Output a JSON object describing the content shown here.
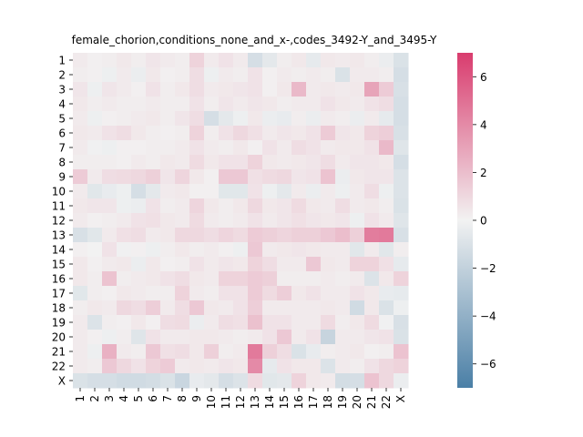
{
  "chart_data": {
    "type": "heatmap",
    "title": "female_chorion,conditions_none_and_x-,codes_3492-Y_and_3495-Y",
    "xlabel": "",
    "ylabel": "",
    "x_categories": [
      "1",
      "2",
      "3",
      "4",
      "5",
      "6",
      "7",
      "8",
      "9",
      "10",
      "11",
      "12",
      "13",
      "14",
      "15",
      "16",
      "17",
      "18",
      "19",
      "20",
      "21",
      "22",
      "X"
    ],
    "y_categories": [
      "1",
      "2",
      "3",
      "4",
      "5",
      "6",
      "7",
      "8",
      "9",
      "10",
      "11",
      "12",
      "13",
      "14",
      "15",
      "16",
      "17",
      "18",
      "19",
      "20",
      "21",
      "22",
      "X"
    ],
    "colorbar": {
      "vmin": -7,
      "vmax": 7,
      "ticks": [
        -6,
        -4,
        -2,
        0,
        2,
        4,
        6
      ],
      "tick_labels": [
        "−6",
        "−4",
        "−2",
        "0",
        "2",
        "4",
        "6"
      ],
      "low_color": "#4a7fa6",
      "mid_color": "#f2f2f2",
      "high_color": "#d93c6e"
    },
    "values": [
      [
        0.3,
        0.1,
        0.2,
        0.4,
        0.2,
        0.5,
        0.3,
        0.2,
        1.2,
        0.3,
        0.6,
        0.3,
        -1.2,
        -0.6,
        0.2,
        0.4,
        -0.5,
        0.4,
        0.3,
        0.4,
        0.2,
        -0.3,
        -1.0
      ],
      [
        0.2,
        0.1,
        -0.2,
        0.3,
        -0.3,
        0.4,
        0.1,
        0.2,
        0.8,
        -0.2,
        0.3,
        0.2,
        0.6,
        0.1,
        0.3,
        0.2,
        0.3,
        0.2,
        -1.0,
        0.3,
        0.3,
        0.2,
        -1.2
      ],
      [
        0.5,
        -0.2,
        0.5,
        0.3,
        0.1,
        0.6,
        0.2,
        0.4,
        0.8,
        0.3,
        0.4,
        0.5,
        0.6,
        0.1,
        0.4,
        2.2,
        0.3,
        0.4,
        0.3,
        0.4,
        3.0,
        1.5,
        -1.1
      ],
      [
        0.4,
        0.2,
        0.3,
        0.2,
        0.2,
        0.3,
        0.2,
        0.2,
        0.6,
        0.2,
        0.5,
        0.3,
        0.5,
        0.4,
        0.2,
        0.3,
        0.3,
        0.6,
        0.4,
        0.3,
        0.6,
        0.8,
        -1.2
      ],
      [
        0.3,
        -0.2,
        0.1,
        0.2,
        0.3,
        0.4,
        0.2,
        0.5,
        0.8,
        -1.2,
        -0.6,
        -0.2,
        0.4,
        -0.3,
        -0.4,
        0.2,
        -0.3,
        0.3,
        0.2,
        -0.3,
        0.3,
        -0.5,
        -1.2
      ],
      [
        0.4,
        0.3,
        0.6,
        0.8,
        0.4,
        0.2,
        0.1,
        0.2,
        1.2,
        0.2,
        0.6,
        1.0,
        0.7,
        0.3,
        0.5,
        0.4,
        0.6,
        1.5,
        0.5,
        0.4,
        1.2,
        1.4,
        -1.1
      ],
      [
        0.3,
        -0.1,
        -0.2,
        0.1,
        0.1,
        0.2,
        0.2,
        0.3,
        0.6,
        0.3,
        0.2,
        0.4,
        0.1,
        0.6,
        0.3,
        0.8,
        0.6,
        0.3,
        0.4,
        0.4,
        0.6,
        2.2,
        -0.8
      ],
      [
        0.2,
        0.2,
        0.2,
        0.1,
        0.3,
        0.2,
        0.4,
        0.3,
        0.9,
        0.4,
        0.6,
        0.6,
        1.2,
        0.4,
        0.3,
        0.4,
        0.5,
        0.8,
        0.3,
        0.5,
        0.5,
        0.4,
        -1.2
      ],
      [
        1.5,
        0.3,
        0.8,
        0.9,
        1.0,
        1.3,
        0.5,
        1.1,
        0.4,
        0.1,
        1.6,
        1.6,
        0.7,
        0.9,
        1.0,
        0.5,
        0.6,
        1.8,
        -0.3,
        0.4,
        0.5,
        0.5,
        -0.9
      ],
      [
        0.3,
        -0.7,
        -0.4,
        -0.2,
        -1.2,
        -0.6,
        0.3,
        0.4,
        0.1,
        0.1,
        -0.7,
        -0.7,
        0.6,
        -0.2,
        -0.6,
        0.3,
        -0.3,
        0.3,
        -0.2,
        0.3,
        0.8,
        -0.2,
        -0.9
      ],
      [
        0.4,
        0.5,
        0.5,
        -0.2,
        -0.3,
        0.6,
        0.2,
        0.3,
        1.1,
        0.4,
        0.2,
        0.4,
        1.0,
        0.4,
        0.5,
        0.9,
        0.4,
        0.3,
        0.8,
        0.3,
        0.4,
        0.2,
        -1.0
      ],
      [
        0.3,
        0.1,
        0.2,
        0.3,
        0.6,
        0.7,
        0.4,
        0.3,
        0.9,
        0.3,
        0.2,
        0.3,
        0.6,
        0.3,
        0.5,
        0.7,
        0.5,
        0.4,
        0.5,
        -0.2,
        0.6,
        0.3,
        -0.8
      ],
      [
        -1.1,
        -0.7,
        0.3,
        0.7,
        0.8,
        0.3,
        0.4,
        1.0,
        1.0,
        0.8,
        1.1,
        0.9,
        1.5,
        1.3,
        1.1,
        1.3,
        1.3,
        1.6,
        2.0,
        1.3,
        4.5,
        4.6,
        -1.1
      ],
      [
        0.1,
        0.0,
        0.6,
        -0.1,
        0.1,
        -0.2,
        0.2,
        0.4,
        0.2,
        0.3,
        0.1,
        -0.2,
        1.6,
        0.3,
        0.4,
        0.5,
        0.4,
        0.3,
        0.3,
        -0.7,
        0.3,
        -0.7,
        0.2
      ],
      [
        0.4,
        0.1,
        0.3,
        0.4,
        -0.3,
        0.4,
        0.1,
        0.2,
        0.6,
        0.3,
        0.5,
        0.4,
        1.2,
        0.8,
        0.3,
        0.3,
        1.6,
        0.4,
        0.3,
        1.2,
        1.2,
        0.7,
        -0.5
      ],
      [
        0.4,
        0.2,
        1.8,
        0.2,
        0.3,
        0.4,
        0.6,
        0.8,
        0.4,
        0.3,
        1.2,
        1.2,
        1.5,
        1.3,
        0.2,
        0.2,
        0.2,
        0.3,
        0.2,
        0.3,
        -0.9,
        0.4,
        1.2
      ],
      [
        -0.7,
        0.2,
        0.1,
        0.4,
        0.3,
        0.2,
        0.2,
        1.2,
        0.3,
        0.2,
        0.6,
        0.6,
        1.5,
        0.9,
        1.4,
        0.4,
        0.6,
        0.3,
        0.3,
        0.6,
        0.4,
        -0.4,
        -0.5
      ],
      [
        0.2,
        0.4,
        0.3,
        1.0,
        0.8,
        1.4,
        0.3,
        0.8,
        1.6,
        0.4,
        0.3,
        0.6,
        1.4,
        0.3,
        0.3,
        0.3,
        0.3,
        0.4,
        0.3,
        -1.4,
        0.4,
        -1.0,
        -0.2
      ],
      [
        0.3,
        -0.9,
        0.2,
        0.1,
        0.4,
        0.1,
        0.8,
        0.9,
        -0.3,
        0.3,
        0.8,
        0.7,
        1.9,
        0.6,
        0.6,
        0.3,
        0.3,
        0.9,
        0.2,
        0.4,
        0.9,
        -0.1,
        -1.1
      ],
      [
        0.3,
        0.1,
        -0.2,
        0.2,
        -0.8,
        0.6,
        0.3,
        0.3,
        0.4,
        0.4,
        0.3,
        0.2,
        0.3,
        0.6,
        1.6,
        0.3,
        0.6,
        -1.8,
        0.3,
        0.3,
        0.5,
        0.6,
        -1.0
      ],
      [
        0.3,
        -0.2,
        2.5,
        0.3,
        0.2,
        1.6,
        0.7,
        0.8,
        0.4,
        1.3,
        0.2,
        0.3,
        4.6,
        1.3,
        0.8,
        -1.0,
        -0.4,
        0.2,
        0.3,
        0.4,
        0.1,
        0.2,
        1.8
      ],
      [
        0.3,
        0.2,
        1.6,
        1.0,
        0.6,
        1.2,
        1.5,
        0.3,
        0.4,
        0.3,
        0.5,
        0.4,
        4.0,
        -0.5,
        0.6,
        0.4,
        0.4,
        -0.9,
        0.3,
        0.2,
        0.6,
        1.0,
        1.2
      ],
      [
        -1.0,
        -1.2,
        -1.2,
        -1.4,
        -1.4,
        -1.3,
        -1.0,
        -1.7,
        -0.4,
        -0.6,
        -1.2,
        -0.9,
        0.9,
        -0.7,
        -0.6,
        1.2,
        0.4,
        0.3,
        -1.3,
        -1.2,
        1.8,
        1.0,
        -0.3
      ]
    ]
  }
}
